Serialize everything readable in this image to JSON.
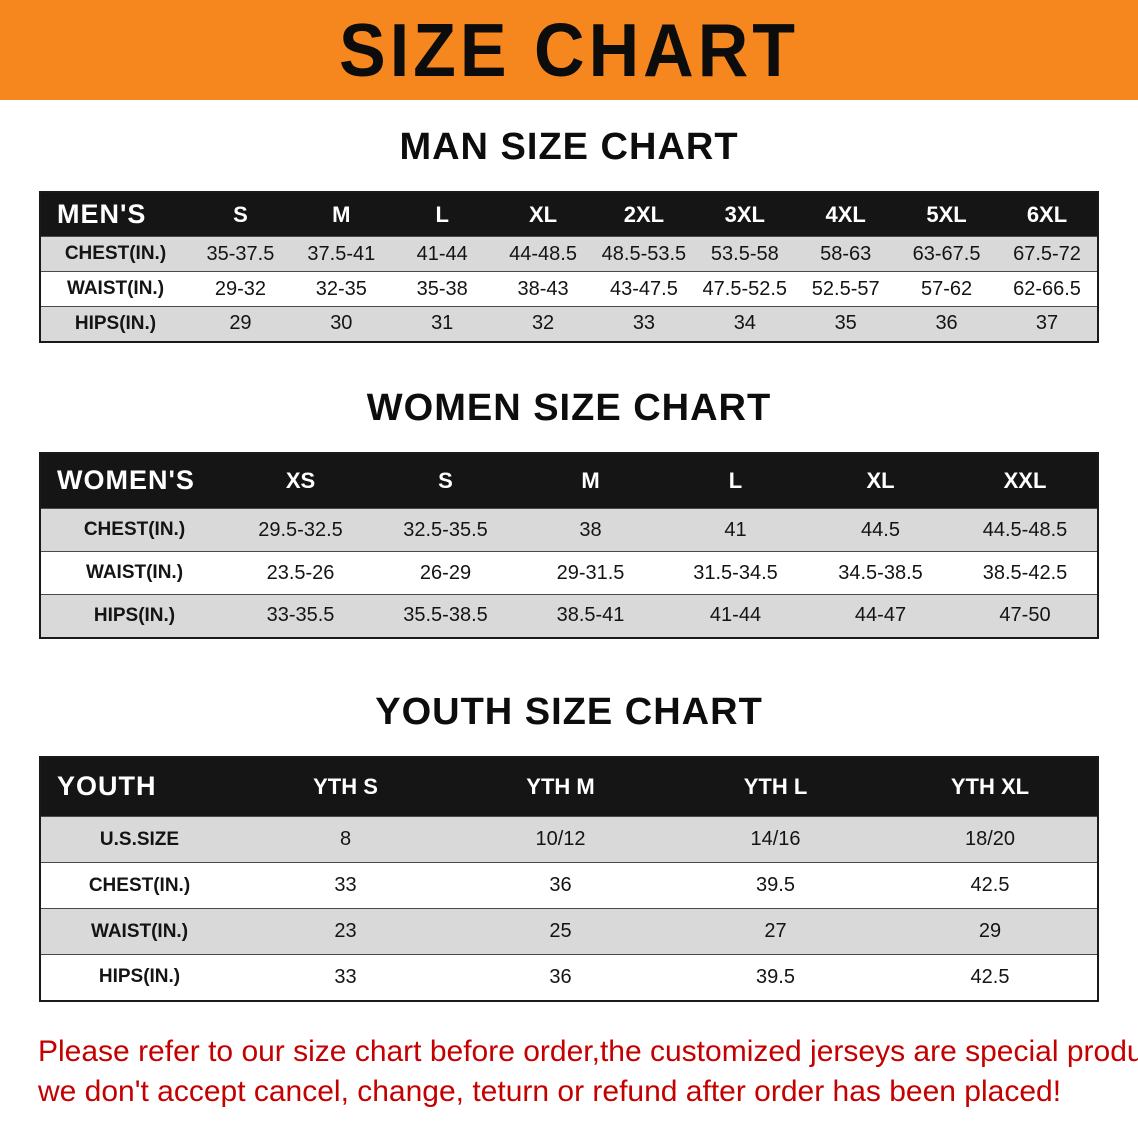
{
  "banner": {
    "title": "SIZE CHART"
  },
  "colors": {
    "banner_orange": "#F6871F",
    "table_header_black": "#151515",
    "row_alt_gray": "#D9D9D9",
    "notice_red": "#C40000"
  },
  "sections": [
    {
      "id": "men",
      "title": "MAN SIZE CHART",
      "corner_label": "MEN'S",
      "columns": [
        "S",
        "M",
        "L",
        "XL",
        "2XL",
        "3XL",
        "4XL",
        "5XL",
        "6XL"
      ],
      "rows": [
        {
          "label": "CHEST(IN.)",
          "values": [
            "35-37.5",
            "37.5-41",
            "41-44",
            "44-48.5",
            "48.5-53.5",
            "53.5-58",
            "58-63",
            "63-67.5",
            "67.5-72"
          ]
        },
        {
          "label": "WAIST(IN.)",
          "values": [
            "29-32",
            "32-35",
            "35-38",
            "38-43",
            "43-47.5",
            "47.5-52.5",
            "52.5-57",
            "57-62",
            "62-66.5"
          ]
        },
        {
          "label": "HIPS(IN.)",
          "values": [
            "29",
            "30",
            "31",
            "32",
            "33",
            "34",
            "35",
            "36",
            "37"
          ]
        }
      ]
    },
    {
      "id": "women",
      "title": "WOMEN SIZE CHART",
      "corner_label": "WOMEN'S",
      "columns": [
        "XS",
        "S",
        "M",
        "L",
        "XL",
        "XXL"
      ],
      "rows": [
        {
          "label": "CHEST(IN.)",
          "values": [
            "29.5-32.5",
            "32.5-35.5",
            "38",
            "41",
            "44.5",
            "44.5-48.5"
          ]
        },
        {
          "label": "WAIST(IN.)",
          "values": [
            "23.5-26",
            "26-29",
            "29-31.5",
            "31.5-34.5",
            "34.5-38.5",
            "38.5-42.5"
          ]
        },
        {
          "label": "HIPS(IN.)",
          "values": [
            "33-35.5",
            "35.5-38.5",
            "38.5-41",
            "41-44",
            "44-47",
            "47-50"
          ]
        }
      ]
    },
    {
      "id": "youth",
      "title": "YOUTH SIZE CHART",
      "corner_label": "YOUTH",
      "columns": [
        "YTH S",
        "YTH M",
        "YTH L",
        "YTH XL"
      ],
      "rows": [
        {
          "label": "U.S.SIZE",
          "values": [
            "8",
            "10/12",
            "14/16",
            "18/20"
          ]
        },
        {
          "label": "CHEST(IN.)",
          "values": [
            "33",
            "36",
            "39.5",
            "42.5"
          ]
        },
        {
          "label": "WAIST(IN.)",
          "values": [
            "23",
            "25",
            "27",
            "29"
          ]
        },
        {
          "label": "HIPS(IN.)",
          "values": [
            "33",
            "36",
            "39.5",
            "42.5"
          ]
        }
      ]
    }
  ],
  "footer": {
    "line1": "Please refer to our size chart before order,the customized jerseys are special products,",
    "line2": "we don't accept cancel, change, teturn or refund after order has been placed!"
  }
}
